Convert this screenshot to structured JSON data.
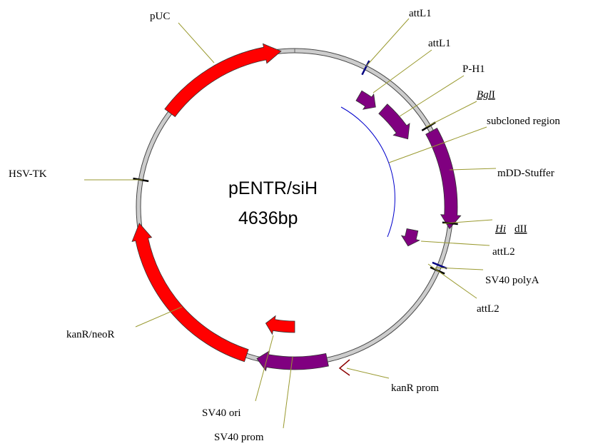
{
  "center_label": {
    "name": "pENTR/siH",
    "size": "4636bp"
  },
  "features": [
    "pUC",
    "attL1",
    "attL1",
    "P-H1",
    "subcloned region",
    "mDD-Stuffer",
    "attL2",
    "SV40 polyA",
    "attL2",
    "kanR prom",
    "SV40 ori",
    "SV40 prom",
    "kanR/neoR",
    "HSV-TK"
  ],
  "sites": {
    "bglI": [
      "Bgl",
      "I"
    ],
    "hindIII": [
      "Hi",
      "dII"
    ]
  }
}
